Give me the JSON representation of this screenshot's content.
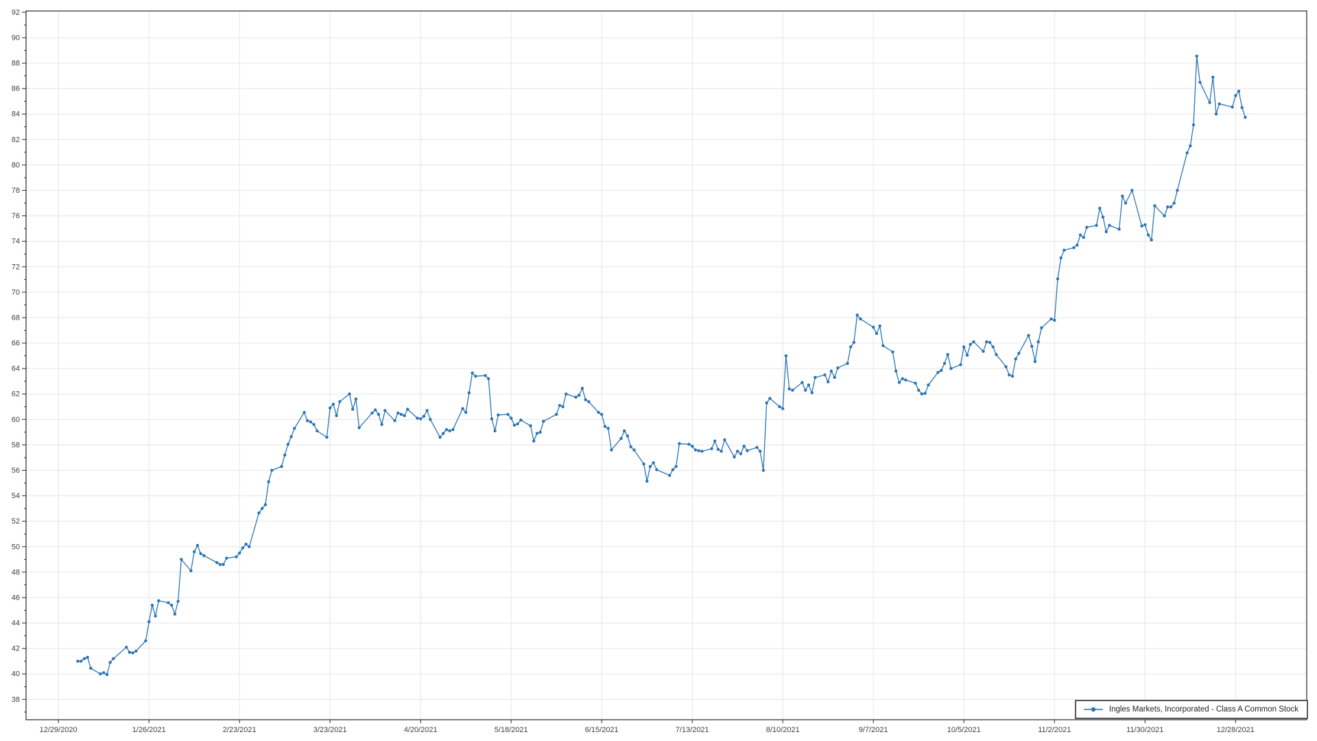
{
  "window": {
    "background": "#ffffff"
  },
  "legend": {
    "label": "Ingles Markets, Incorporated - Class A Common Stock"
  },
  "chart_data": {
    "type": "line",
    "title": "",
    "xlabel": "",
    "ylabel": "",
    "grid": true,
    "legend_position": "bottom-right",
    "xlim": [
      "2020-12-19",
      "2022-01-19"
    ],
    "ylim": [
      36.4,
      92.1
    ],
    "x_ticks": {
      "dates": [
        "2020-12-29",
        "2021-01-26",
        "2021-02-23",
        "2021-03-23",
        "2021-04-20",
        "2021-05-18",
        "2021-06-15",
        "2021-07-13",
        "2021-08-10",
        "2021-09-07",
        "2021-10-05",
        "2021-11-02",
        "2021-11-30",
        "2021-12-28"
      ],
      "labels": [
        "12/29/2020",
        "1/26/2021",
        "2/23/2021",
        "3/23/2021",
        "4/20/2021",
        "5/18/2021",
        "6/15/2021",
        "7/13/2021",
        "8/10/2021",
        "9/7/2021",
        "10/5/2021",
        "11/2/2021",
        "11/30/2021",
        "12/28/2021"
      ]
    },
    "y_ticks": {
      "values": [
        38,
        40,
        42,
        44,
        46,
        48,
        50,
        52,
        54,
        56,
        58,
        60,
        62,
        64,
        66,
        68,
        70,
        72,
        74,
        76,
        78,
        80,
        82,
        84,
        86,
        88,
        90,
        92
      ],
      "minor_step": 1
    },
    "colors": {
      "series": "#2a73b5",
      "grid": "#e5e5e5",
      "axis": "#262626",
      "tick_label": "#3e3e3e"
    },
    "series": [
      {
        "name": "Ingles Markets, Incorporated - Class A Common Stock",
        "marker": "circle",
        "dates": [
          "2021-01-04",
          "2021-01-05",
          "2021-01-06",
          "2021-01-07",
          "2021-01-08",
          "2021-01-11",
          "2021-01-12",
          "2021-01-13",
          "2021-01-14",
          "2021-01-15",
          "2021-01-19",
          "2021-01-20",
          "2021-01-21",
          "2021-01-22",
          "2021-01-25",
          "2021-01-26",
          "2021-01-27",
          "2021-01-28",
          "2021-01-29",
          "2021-02-01",
          "2021-02-02",
          "2021-02-03",
          "2021-02-04",
          "2021-02-05",
          "2021-02-08",
          "2021-02-09",
          "2021-02-10",
          "2021-02-11",
          "2021-02-12",
          "2021-02-16",
          "2021-02-17",
          "2021-02-18",
          "2021-02-19",
          "2021-02-22",
          "2021-02-23",
          "2021-02-24",
          "2021-02-25",
          "2021-02-26",
          "2021-03-01",
          "2021-03-02",
          "2021-03-03",
          "2021-03-04",
          "2021-03-05",
          "2021-03-08",
          "2021-03-09",
          "2021-03-10",
          "2021-03-11",
          "2021-03-12",
          "2021-03-15",
          "2021-03-16",
          "2021-03-17",
          "2021-03-18",
          "2021-03-19",
          "2021-03-22",
          "2021-03-23",
          "2021-03-24",
          "2021-03-25",
          "2021-03-26",
          "2021-03-29",
          "2021-03-30",
          "2021-03-31",
          "2021-04-01",
          "2021-04-05",
          "2021-04-06",
          "2021-04-07",
          "2021-04-08",
          "2021-04-09",
          "2021-04-12",
          "2021-04-13",
          "2021-04-14",
          "2021-04-15",
          "2021-04-16",
          "2021-04-19",
          "2021-04-20",
          "2021-04-21",
          "2021-04-22",
          "2021-04-23",
          "2021-04-26",
          "2021-04-27",
          "2021-04-28",
          "2021-04-29",
          "2021-04-30",
          "2021-05-03",
          "2021-05-04",
          "2021-05-05",
          "2021-05-06",
          "2021-05-07",
          "2021-05-10",
          "2021-05-11",
          "2021-05-12",
          "2021-05-13",
          "2021-05-14",
          "2021-05-17",
          "2021-05-18",
          "2021-05-19",
          "2021-05-20",
          "2021-05-21",
          "2021-05-24",
          "2021-05-25",
          "2021-05-26",
          "2021-05-27",
          "2021-05-28",
          "2021-06-01",
          "2021-06-02",
          "2021-06-03",
          "2021-06-04",
          "2021-06-07",
          "2021-06-08",
          "2021-06-09",
          "2021-06-10",
          "2021-06-11",
          "2021-06-14",
          "2021-06-15",
          "2021-06-16",
          "2021-06-17",
          "2021-06-18",
          "2021-06-21",
          "2021-06-22",
          "2021-06-23",
          "2021-06-24",
          "2021-06-25",
          "2021-06-28",
          "2021-06-29",
          "2021-06-30",
          "2021-07-01",
          "2021-07-02",
          "2021-07-06",
          "2021-07-07",
          "2021-07-08",
          "2021-07-09",
          "2021-07-12",
          "2021-07-13",
          "2021-07-14",
          "2021-07-15",
          "2021-07-16",
          "2021-07-19",
          "2021-07-20",
          "2021-07-21",
          "2021-07-22",
          "2021-07-23",
          "2021-07-26",
          "2021-07-27",
          "2021-07-28",
          "2021-07-29",
          "2021-07-30",
          "2021-08-02",
          "2021-08-03",
          "2021-08-04",
          "2021-08-05",
          "2021-08-06",
          "2021-08-09",
          "2021-08-10",
          "2021-08-11",
          "2021-08-12",
          "2021-08-13",
          "2021-08-16",
          "2021-08-17",
          "2021-08-18",
          "2021-08-19",
          "2021-08-20",
          "2021-08-23",
          "2021-08-24",
          "2021-08-25",
          "2021-08-26",
          "2021-08-27",
          "2021-08-30",
          "2021-08-31",
          "2021-09-01",
          "2021-09-02",
          "2021-09-03",
          "2021-09-07",
          "2021-09-08",
          "2021-09-09",
          "2021-09-10",
          "2021-09-13",
          "2021-09-14",
          "2021-09-15",
          "2021-09-16",
          "2021-09-17",
          "2021-09-20",
          "2021-09-21",
          "2021-09-22",
          "2021-09-23",
          "2021-09-24",
          "2021-09-27",
          "2021-09-28",
          "2021-09-29",
          "2021-09-30",
          "2021-10-01",
          "2021-10-04",
          "2021-10-05",
          "2021-10-06",
          "2021-10-07",
          "2021-10-08",
          "2021-10-11",
          "2021-10-12",
          "2021-10-13",
          "2021-10-14",
          "2021-10-15",
          "2021-10-18",
          "2021-10-19",
          "2021-10-20",
          "2021-10-21",
          "2021-10-22",
          "2021-10-25",
          "2021-10-26",
          "2021-10-27",
          "2021-10-28",
          "2021-10-29",
          "2021-11-01",
          "2021-11-02",
          "2021-11-03",
          "2021-11-04",
          "2021-11-05",
          "2021-11-08",
          "2021-11-09",
          "2021-11-10",
          "2021-11-11",
          "2021-11-12",
          "2021-11-15",
          "2021-11-16",
          "2021-11-17",
          "2021-11-18",
          "2021-11-19",
          "2021-11-22",
          "2021-11-23",
          "2021-11-24",
          "2021-11-26",
          "2021-11-29",
          "2021-11-30",
          "2021-12-01",
          "2021-12-02",
          "2021-12-03",
          "2021-12-06",
          "2021-12-07",
          "2021-12-08",
          "2021-12-09",
          "2021-12-10",
          "2021-12-13",
          "2021-12-14",
          "2021-12-15",
          "2021-12-16",
          "2021-12-17",
          "2021-12-20",
          "2021-12-21",
          "2021-12-22",
          "2021-12-23",
          "2021-12-27",
          "2021-12-28",
          "2021-12-29",
          "2021-12-30",
          "2021-12-31"
        ],
        "values": [
          41.0,
          41.0,
          41.2,
          41.3,
          40.45,
          40.0,
          40.1,
          39.95,
          40.9,
          41.2,
          42.1,
          41.7,
          41.65,
          41.8,
          42.6,
          44.1,
          45.4,
          44.55,
          45.75,
          45.6,
          45.4,
          44.7,
          45.7,
          49.0,
          48.1,
          49.6,
          50.1,
          49.45,
          49.3,
          48.75,
          48.6,
          48.6,
          49.1,
          49.2,
          49.5,
          49.9,
          50.2,
          50.0,
          52.65,
          53.0,
          53.3,
          55.1,
          56.0,
          56.3,
          57.2,
          58.05,
          58.65,
          59.3,
          60.55,
          59.9,
          59.8,
          59.6,
          59.1,
          58.6,
          60.9,
          61.2,
          60.3,
          61.4,
          62.0,
          60.8,
          61.6,
          59.35,
          60.5,
          60.75,
          60.4,
          59.6,
          60.7,
          59.9,
          60.5,
          60.4,
          60.3,
          60.8,
          60.1,
          60.05,
          60.25,
          60.7,
          60.0,
          58.6,
          58.9,
          59.2,
          59.1,
          59.2,
          60.85,
          60.55,
          62.1,
          63.65,
          63.4,
          63.45,
          63.2,
          60.05,
          59.1,
          60.35,
          60.4,
          60.1,
          59.55,
          59.65,
          59.95,
          59.5,
          58.3,
          58.9,
          59.0,
          59.85,
          60.4,
          61.1,
          61.0,
          62.0,
          61.75,
          61.9,
          62.45,
          61.55,
          61.4,
          60.55,
          60.4,
          59.45,
          59.3,
          57.6,
          58.5,
          59.1,
          58.7,
          57.85,
          57.6,
          56.5,
          55.15,
          56.3,
          56.6,
          56.05,
          55.6,
          56.05,
          56.3,
          58.1,
          58.05,
          57.9,
          57.6,
          57.55,
          57.5,
          57.7,
          58.3,
          57.65,
          57.5,
          58.4,
          57.05,
          57.5,
          57.3,
          57.9,
          57.55,
          57.8,
          57.5,
          56.0,
          61.3,
          61.65,
          61.0,
          60.85,
          65.0,
          62.4,
          62.3,
          62.9,
          62.3,
          62.7,
          62.1,
          63.3,
          63.5,
          62.95,
          63.8,
          63.3,
          64.05,
          64.4,
          65.7,
          66.05,
          68.2,
          67.9,
          67.25,
          66.75,
          67.35,
          65.8,
          65.3,
          63.8,
          62.9,
          63.2,
          63.1,
          62.85,
          62.3,
          62.0,
          62.05,
          62.7,
          63.7,
          63.85,
          64.4,
          65.1,
          64.0,
          64.3,
          65.7,
          65.05,
          65.9,
          66.1,
          65.35,
          66.1,
          66.05,
          65.7,
          65.1,
          64.15,
          63.5,
          63.4,
          64.75,
          65.2,
          66.6,
          65.75,
          64.55,
          66.1,
          67.2,
          67.9,
          67.8,
          71.05,
          72.7,
          73.3,
          73.5,
          73.7,
          74.5,
          74.3,
          75.1,
          75.25,
          76.6,
          75.9,
          74.75,
          75.25,
          74.95,
          77.55,
          77.0,
          78.0,
          75.2,
          75.3,
          74.5,
          74.1,
          76.8,
          76.0,
          76.7,
          76.7,
          77.0,
          78.0,
          80.95,
          81.5,
          83.15,
          88.55,
          86.5,
          84.9,
          86.9,
          84.0,
          84.8,
          84.55,
          85.45,
          85.8,
          84.5,
          83.75
        ]
      }
    ]
  }
}
